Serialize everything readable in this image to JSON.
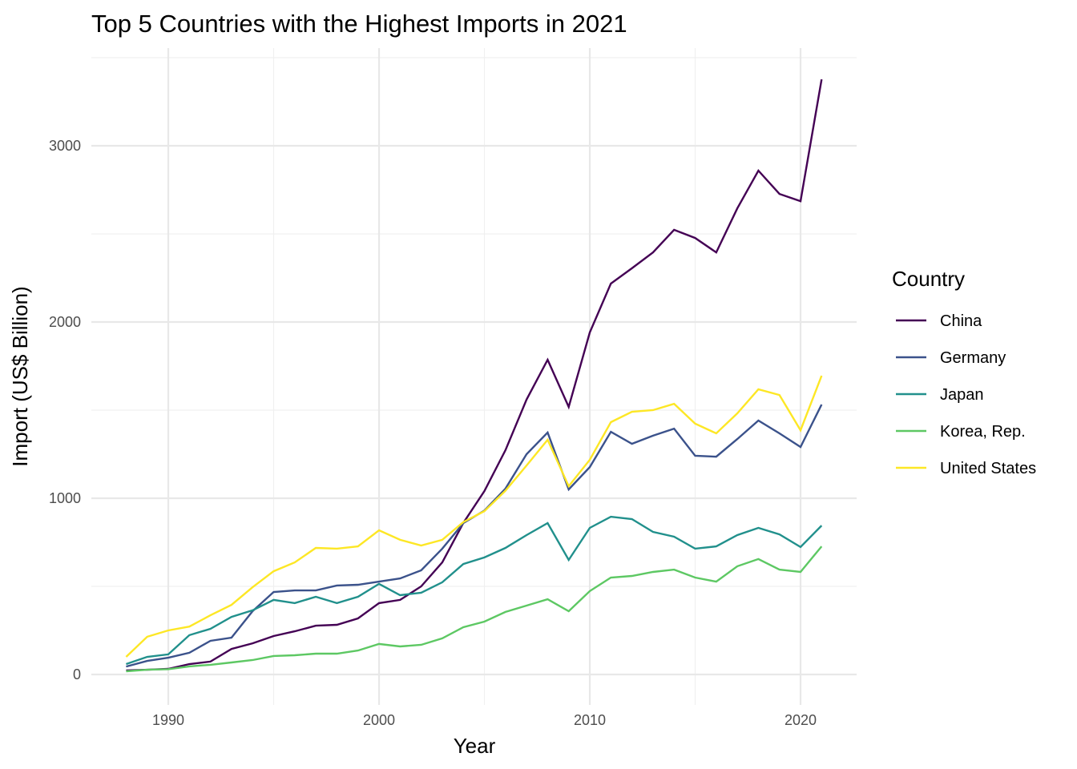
{
  "chart_data": {
    "type": "line",
    "title": "Top 5 Countries with the Highest Imports in 2021",
    "xlabel": "Year",
    "ylabel": "Import (US$ Billion)",
    "xlim": [
      1986.5,
      2022.5
    ],
    "ylim": [
      -130,
      3500
    ],
    "x_ticks": [
      1990,
      2000,
      2010,
      2020
    ],
    "x_minor": [
      1995,
      2005,
      2015
    ],
    "y_ticks": [
      0,
      1000,
      2000,
      3000
    ],
    "y_minor": [
      500,
      1500,
      2500
    ],
    "grid": true,
    "legend": {
      "title": "Country",
      "position": "right"
    },
    "x": [
      1988,
      1989,
      1990,
      1991,
      1992,
      1993,
      1994,
      1995,
      1996,
      1997,
      1998,
      1999,
      2000,
      2001,
      2002,
      2003,
      2004,
      2005,
      2006,
      2007,
      2008,
      2009,
      2010,
      2011,
      2012,
      2013,
      2014,
      2015,
      2016,
      2017,
      2018,
      2019,
      2020,
      2021
    ],
    "series": [
      {
        "name": "China",
        "color": "#440154",
        "values": [
          23,
          27,
          32,
          59,
          73,
          145,
          177,
          218,
          245,
          277,
          282,
          318,
          405,
          423,
          500,
          636,
          860,
          1041,
          1273,
          1560,
          1786,
          1518,
          1941,
          2218,
          2305,
          2395,
          2523,
          2477,
          2395,
          2645,
          2859,
          2727,
          2686,
          3377
        ]
      },
      {
        "name": "Germany",
        "color": "#3B528B",
        "values": [
          45,
          77,
          95,
          123,
          191,
          209,
          359,
          468,
          477,
          477,
          505,
          509,
          527,
          545,
          591,
          714,
          859,
          930,
          1055,
          1250,
          1373,
          1050,
          1177,
          1377,
          1309,
          1355,
          1395,
          1241,
          1236,
          1336,
          1441,
          1368,
          1291,
          1532
        ]
      },
      {
        "name": "Japan",
        "color": "#21908C",
        "values": [
          59,
          100,
          114,
          223,
          259,
          327,
          364,
          423,
          405,
          441,
          405,
          441,
          514,
          450,
          464,
          523,
          627,
          664,
          718,
          791,
          859,
          650,
          832,
          895,
          882,
          809,
          782,
          714,
          727,
          791,
          832,
          795,
          723,
          845
        ]
      },
      {
        "name": "Korea, Rep.",
        "color": "#5DC863",
        "values": [
          18,
          27,
          30,
          46,
          55,
          68,
          82,
          105,
          109,
          118,
          118,
          136,
          173,
          159,
          168,
          205,
          268,
          300,
          355,
          391,
          427,
          359,
          473,
          550,
          559,
          582,
          595,
          550,
          527,
          614,
          655,
          595,
          582,
          727
        ]
      },
      {
        "name": "United States",
        "color": "#FDE725",
        "values": [
          100,
          214,
          250,
          272,
          336,
          395,
          495,
          586,
          636,
          718,
          714,
          727,
          818,
          764,
          732,
          764,
          865,
          927,
          1043,
          1186,
          1332,
          1068,
          1218,
          1432,
          1491,
          1500,
          1536,
          1423,
          1368,
          1482,
          1618,
          1586,
          1386,
          1695
        ]
      }
    ]
  }
}
